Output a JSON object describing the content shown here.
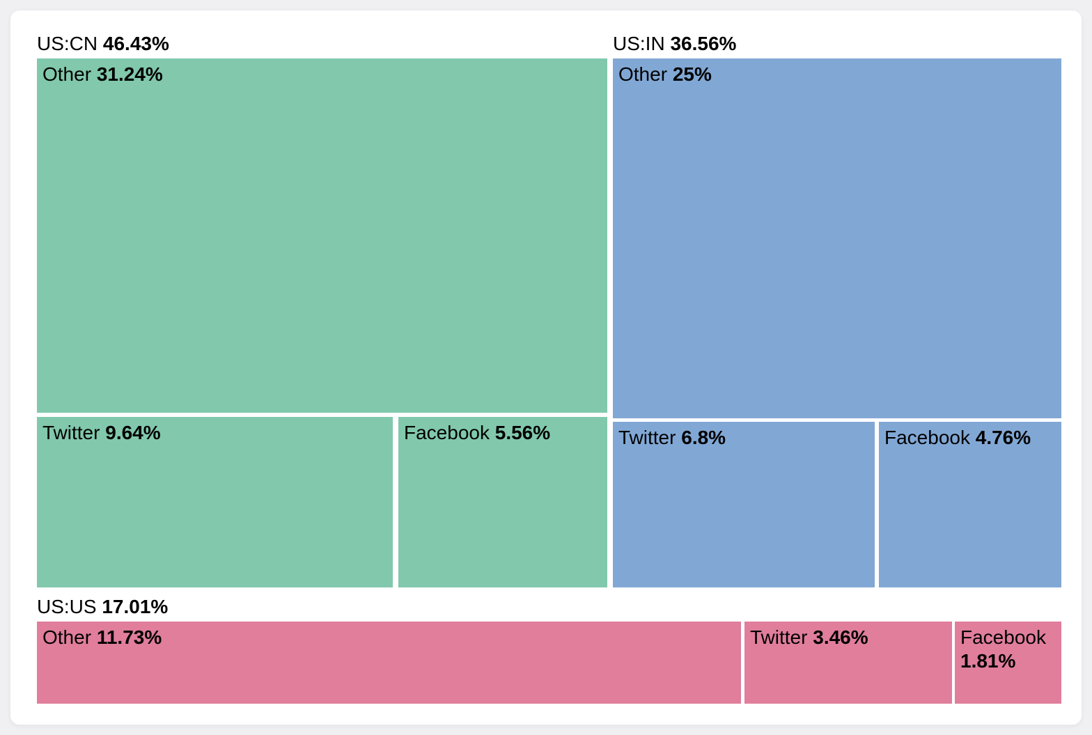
{
  "page": {
    "background": "#f0f0f2",
    "card_background": "#ffffff"
  },
  "chart_data": {
    "type": "treemap",
    "title": "",
    "unit": "percent",
    "legend": "none",
    "groups": [
      {
        "name": "US:CN",
        "share": "46.43%",
        "value": 46.43,
        "color": "#81C8AC",
        "children": [
          {
            "name": "Other",
            "share": "31.24%",
            "value": 31.24
          },
          {
            "name": "Twitter",
            "share": "9.64%",
            "value": 9.64
          },
          {
            "name": "Facebook",
            "share": "5.56%",
            "value": 5.56
          }
        ]
      },
      {
        "name": "US:IN",
        "share": "36.56%",
        "value": 36.56,
        "color": "#81A8D5",
        "children": [
          {
            "name": "Other",
            "share": "25%",
            "value": 25
          },
          {
            "name": "Twitter",
            "share": "6.8%",
            "value": 6.8
          },
          {
            "name": "Facebook",
            "share": "4.76%",
            "value": 4.76
          }
        ]
      },
      {
        "name": "US:US",
        "share": "17.01%",
        "value": 17.01,
        "color": "#E07E9C",
        "children": [
          {
            "name": "Other",
            "share": "11.73%",
            "value": 11.73
          },
          {
            "name": "Twitter",
            "share": "3.46%",
            "value": 3.46
          },
          {
            "name": "Facebook",
            "share": "1.81%",
            "value": 1.81
          }
        ]
      }
    ]
  }
}
